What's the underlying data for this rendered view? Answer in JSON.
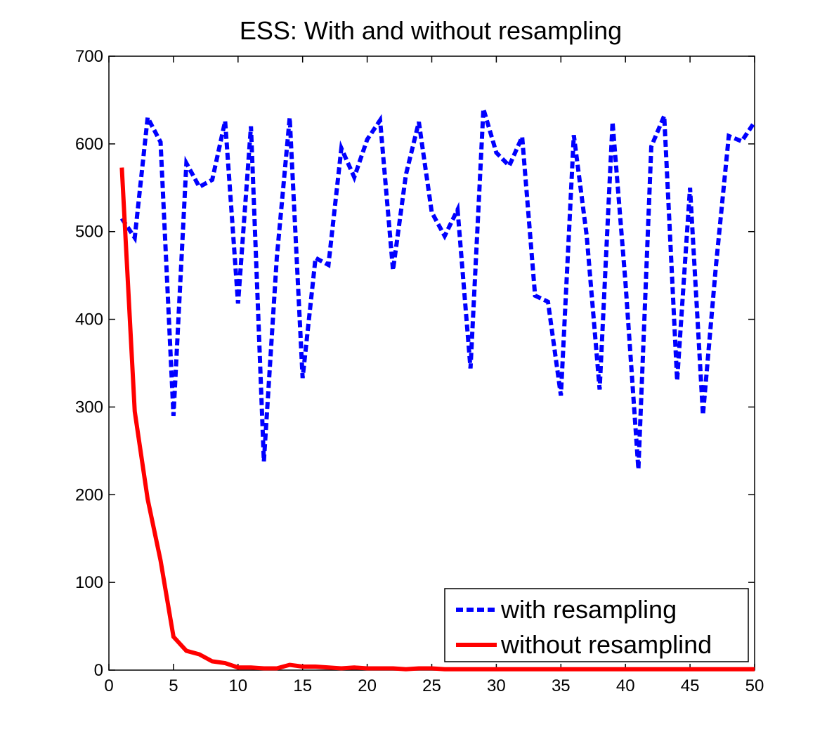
{
  "chart_data": {
    "type": "line",
    "title": "ESS: With and without resampling",
    "xlabel": "",
    "ylabel": "",
    "xlim": [
      0,
      50
    ],
    "ylim": [
      0,
      700
    ],
    "xticks": [
      0,
      5,
      10,
      15,
      20,
      25,
      30,
      35,
      40,
      45,
      50
    ],
    "yticks": [
      0,
      100,
      200,
      300,
      400,
      500,
      600,
      700
    ],
    "grid": false,
    "legend_position": "bottom-right",
    "series": [
      {
        "name": "with resampling",
        "color": "#0000ff",
        "style": "dashed",
        "x": [
          1,
          2,
          3,
          4,
          5,
          6,
          7,
          8,
          9,
          10,
          11,
          12,
          13,
          14,
          15,
          16,
          17,
          18,
          19,
          20,
          21,
          22,
          23,
          24,
          25,
          26,
          27,
          28,
          29,
          30,
          31,
          32,
          33,
          34,
          35,
          36,
          37,
          38,
          39,
          40,
          41,
          42,
          43,
          44,
          45,
          46,
          47,
          48,
          49,
          50
        ],
        "y": [
          515,
          493,
          630,
          602,
          290,
          578,
          551,
          559,
          626,
          418,
          620,
          238,
          470,
          630,
          333,
          470,
          462,
          595,
          562,
          605,
          627,
          456,
          565,
          625,
          522,
          495,
          525,
          344,
          640,
          590,
          575,
          608,
          427,
          420,
          313,
          610,
          495,
          320,
          625,
          442,
          229,
          597,
          632,
          330,
          550,
          291,
          460,
          609,
          603,
          625
        ]
      },
      {
        "name": "without resamplind",
        "color": "#ff0000",
        "style": "solid",
        "x": [
          1,
          2,
          3,
          4,
          5,
          6,
          7,
          8,
          9,
          10,
          11,
          12,
          13,
          14,
          15,
          16,
          17,
          18,
          19,
          20,
          21,
          22,
          23,
          24,
          25,
          26,
          27,
          28,
          29,
          30,
          31,
          32,
          33,
          34,
          35,
          36,
          37,
          38,
          39,
          40,
          41,
          42,
          43,
          44,
          45,
          46,
          47,
          48,
          49,
          50
        ],
        "y": [
          573,
          295,
          195,
          125,
          38,
          22,
          18,
          10,
          8,
          3,
          3,
          2,
          2,
          6,
          4,
          4,
          3,
          2,
          3,
          2,
          2,
          2,
          1,
          2,
          2,
          1,
          1,
          1,
          1,
          1,
          1,
          1,
          1,
          1,
          1,
          1,
          1,
          1,
          1,
          1,
          1,
          1,
          1,
          1,
          1,
          1,
          1,
          1,
          1,
          1
        ]
      }
    ]
  }
}
